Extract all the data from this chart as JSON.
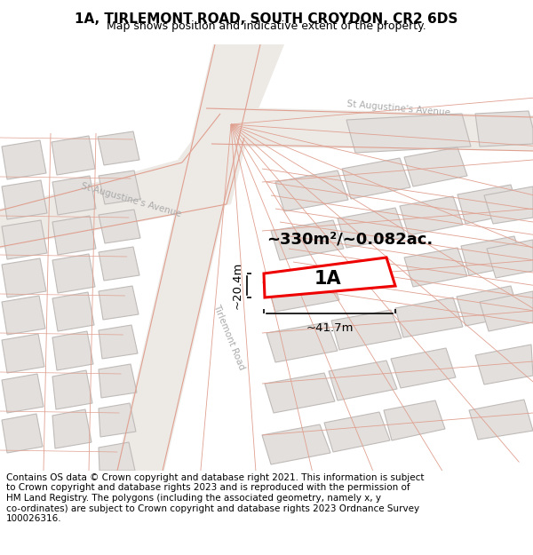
{
  "title": "1A, TIRLEMONT ROAD, SOUTH CROYDON, CR2 6DS",
  "subtitle": "Map shows position and indicative extent of the property.",
  "footer": "Contains OS data © Crown copyright and database right 2021. This information is subject\nto Crown copyright and database rights 2023 and is reproduced with the permission of\nHM Land Registry. The polygons (including the associated geometry, namely x, y\nco-ordinates) are subject to Crown copyright and database rights 2023 Ordnance Survey\n100026316.",
  "area_label": "~330m²/~0.082ac.",
  "property_label": "1A",
  "dim_width": "~41.7m",
  "dim_height": "~20.4m",
  "map_bg": "#f5f3f0",
  "building_fill": "#e2dfdc",
  "building_edge": "#c0bbb8",
  "road_fill": "#ede8e4",
  "road_line_color": "#e0a090",
  "property_edge": "#ee0000",
  "property_fill": "#ffffff",
  "dim_line_color": "#111111",
  "street_label_color": "#aaaaaa",
  "title_fontsize": 11,
  "subtitle_fontsize": 9,
  "footer_fontsize": 7.5
}
